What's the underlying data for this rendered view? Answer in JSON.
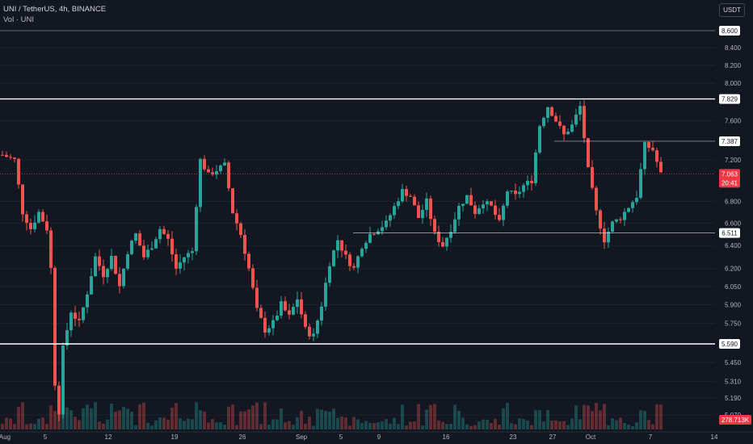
{
  "header": {
    "symbol_line": "UNI / TetherUS, 4h, BINANCE",
    "volume_line": "Vol · UNI",
    "currency_button": "USDT"
  },
  "colors": {
    "background": "#131722",
    "up": "#26a69a",
    "down": "#ef5350",
    "level_line": "#ffffff",
    "current_price": "#f23645",
    "text": "#b2b5be"
  },
  "chart_data": {
    "type": "candlestick",
    "symbol": "UNI/USDT",
    "interval": "4h",
    "exchange": "BINANCE",
    "price_axis": {
      "scale": "log",
      "ticks": [
        "8.600",
        "8.400",
        "8.200",
        "8.000",
        "7.829",
        "7.600",
        "7.387",
        "7.200",
        "7.063",
        "6.800",
        "6.600",
        "6.511",
        "6.400",
        "6.200",
        "6.050",
        "5.900",
        "5.750",
        "5.590",
        "5.450",
        "5.310",
        "5.190",
        "5.070"
      ]
    },
    "time_axis": {
      "ticks": [
        "Aug",
        "5",
        "12",
        "19",
        "26",
        "Sep",
        "5",
        "9",
        "16",
        "23",
        "27",
        "Oct",
        "7",
        "14"
      ]
    },
    "horizontal_levels": [
      {
        "price": 8.6,
        "label": "8.600"
      },
      {
        "price": 7.829,
        "label": "7.829"
      },
      {
        "price": 7.387,
        "label": "7.387"
      },
      {
        "price": 6.511,
        "label": "6.511"
      },
      {
        "price": 5.59,
        "label": "5.590"
      }
    ],
    "current_price": {
      "value": 7.063,
      "label": "7.063",
      "countdown": "20:41"
    },
    "volume": {
      "last_label": "278.713K"
    },
    "close_path": [
      [
        0,
        7.25
      ],
      [
        3,
        7.2
      ],
      [
        5,
        6.7
      ],
      [
        7,
        6.55
      ],
      [
        9,
        6.7
      ],
      [
        11,
        6.55
      ],
      [
        12,
        6.2
      ],
      [
        13,
        5.3
      ],
      [
        14,
        5.1
      ],
      [
        15,
        5.55
      ],
      [
        17,
        5.85
      ],
      [
        19,
        5.75
      ],
      [
        21,
        6.0
      ],
      [
        23,
        6.3
      ],
      [
        25,
        6.15
      ],
      [
        27,
        6.3
      ],
      [
        29,
        6.05
      ],
      [
        31,
        6.35
      ],
      [
        33,
        6.5
      ],
      [
        35,
        6.3
      ],
      [
        37,
        6.4
      ],
      [
        39,
        6.55
      ],
      [
        41,
        6.45
      ],
      [
        43,
        6.2
      ],
      [
        45,
        6.3
      ],
      [
        47,
        6.35
      ],
      [
        49,
        7.2
      ],
      [
        51,
        7.05
      ],
      [
        53,
        7.1
      ],
      [
        55,
        7.15
      ],
      [
        57,
        6.7
      ],
      [
        59,
        6.5
      ],
      [
        61,
        6.2
      ],
      [
        63,
        5.85
      ],
      [
        65,
        5.7
      ],
      [
        67,
        5.75
      ],
      [
        69,
        5.9
      ],
      [
        71,
        5.8
      ],
      [
        73,
        5.95
      ],
      [
        75,
        5.7
      ],
      [
        77,
        5.65
      ],
      [
        79,
        5.9
      ],
      [
        81,
        6.25
      ],
      [
        83,
        6.45
      ],
      [
        85,
        6.3
      ],
      [
        87,
        6.2
      ],
      [
        89,
        6.4
      ],
      [
        91,
        6.5
      ],
      [
        93,
        6.55
      ],
      [
        95,
        6.6
      ],
      [
        97,
        6.75
      ],
      [
        99,
        6.9
      ],
      [
        101,
        6.85
      ],
      [
        103,
        6.65
      ],
      [
        105,
        6.8
      ],
      [
        107,
        6.5
      ],
      [
        109,
        6.4
      ],
      [
        111,
        6.55
      ],
      [
        113,
        6.75
      ],
      [
        115,
        6.85
      ],
      [
        117,
        6.7
      ],
      [
        119,
        6.8
      ],
      [
        121,
        6.75
      ],
      [
        123,
        6.6
      ],
      [
        125,
        6.9
      ],
      [
        127,
        6.85
      ],
      [
        129,
        6.95
      ],
      [
        131,
        7.0
      ],
      [
        133,
        7.55
      ],
      [
        135,
        7.75
      ],
      [
        137,
        7.6
      ],
      [
        139,
        7.45
      ],
      [
        141,
        7.55
      ],
      [
        143,
        7.75
      ],
      [
        145,
        7.1
      ],
      [
        147,
        6.7
      ],
      [
        149,
        6.45
      ],
      [
        151,
        6.6
      ],
      [
        153,
        6.65
      ],
      [
        155,
        6.75
      ],
      [
        157,
        6.85
      ],
      [
        159,
        7.35
      ],
      [
        161,
        7.3
      ],
      [
        163,
        7.06
      ]
    ]
  }
}
